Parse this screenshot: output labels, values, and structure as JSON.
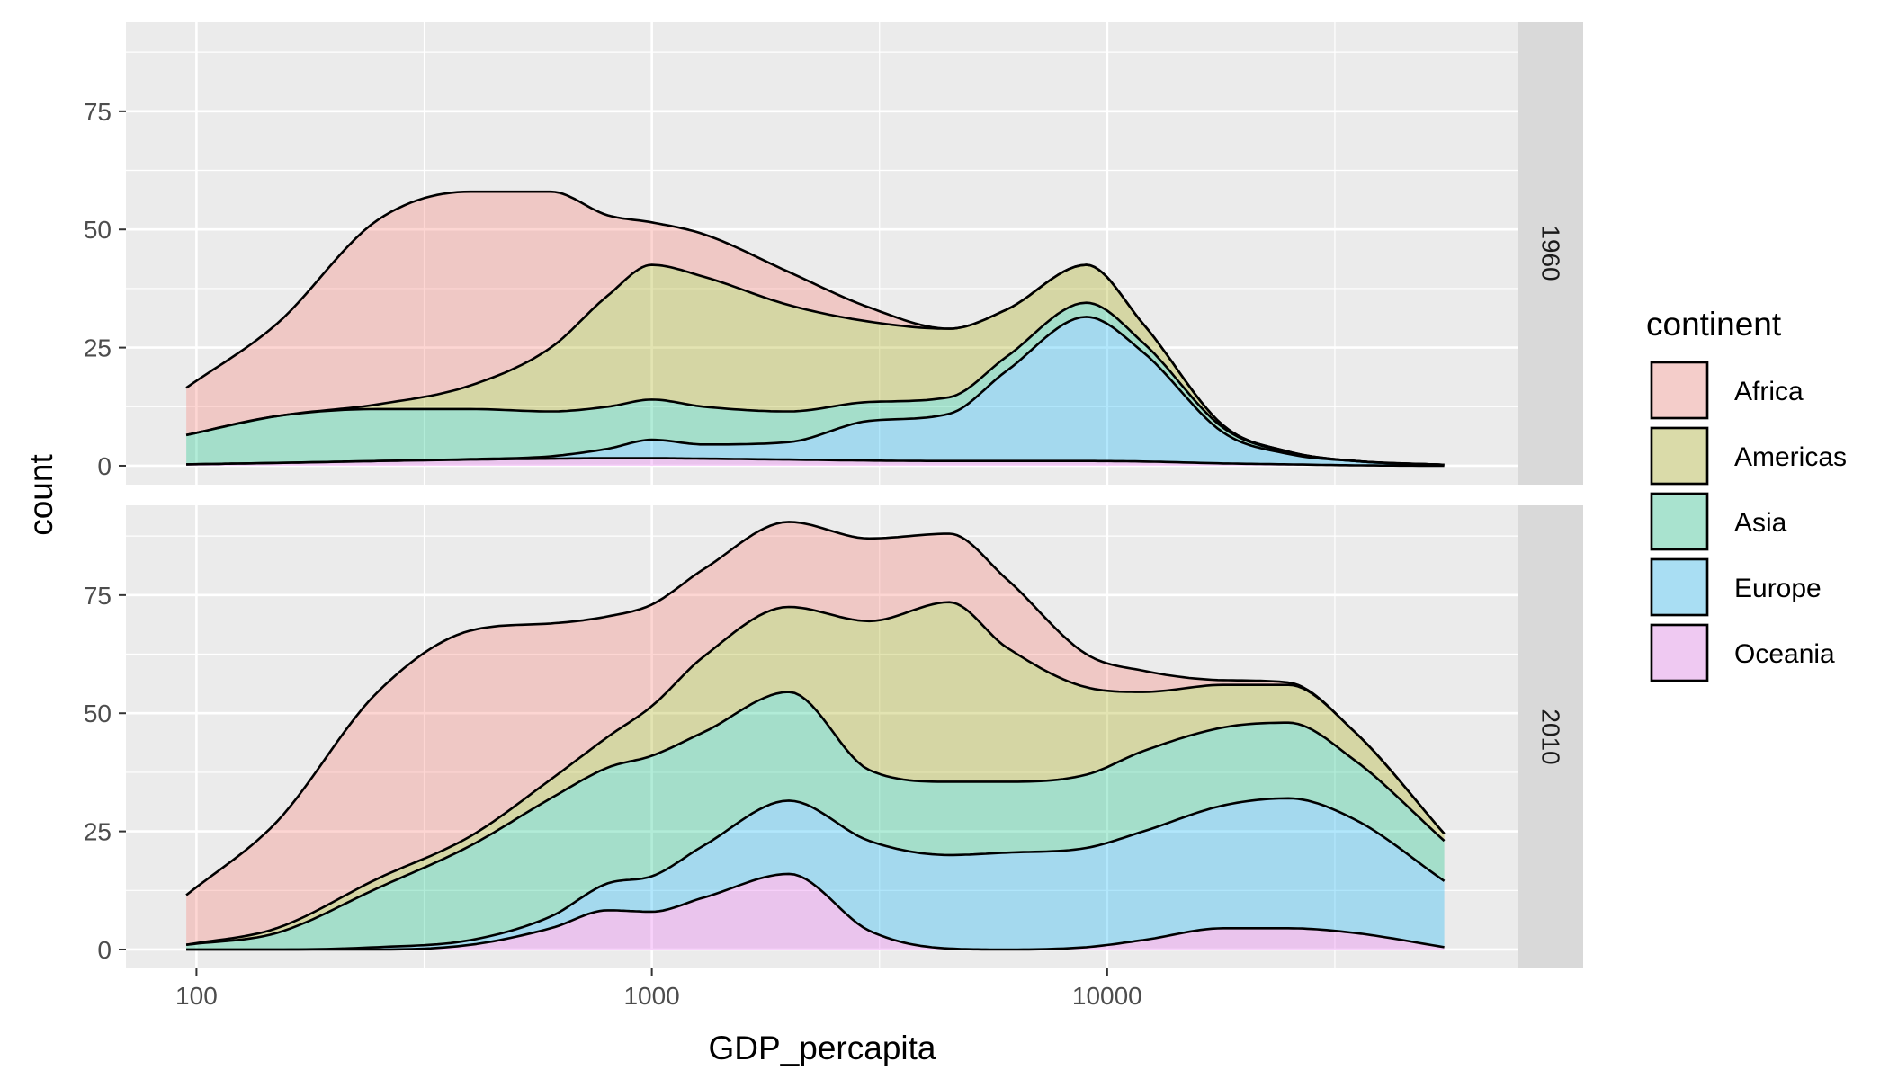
{
  "chart_data": {
    "type": "area",
    "subtype": "stacked density",
    "title": "",
    "xlabel": "GDP_percapita",
    "ylabel": "count",
    "x_scale": "log10",
    "x_ticks": [
      100,
      1000,
      10000
    ],
    "x_tick_labels": [
      "100",
      "1000",
      "10000"
    ],
    "xlim": [
      70,
      80000
    ],
    "y_ticks": [
      0,
      25,
      50,
      75
    ],
    "y_tick_labels": [
      "0",
      "25",
      "50",
      "75"
    ],
    "ylim": [
      -4,
      94
    ],
    "grid": true,
    "legend": {
      "title": "continent",
      "position": "right",
      "entries": [
        "Africa",
        "Americas",
        "Asia",
        "Europe",
        "Oceania"
      ]
    },
    "colors": {
      "Africa": "#F8766D",
      "Americas": "#A3A500",
      "Asia": "#00BF7D",
      "Europe": "#00B0F6",
      "Oceania": "#E76BF3"
    },
    "fill_alpha": 0.3,
    "x": [
      95,
      150,
      250,
      400,
      600,
      800,
      1000,
      1300,
      2000,
      3000,
      4500,
      6000,
      9000,
      12000,
      18000,
      25000,
      35000,
      55000
    ],
    "facets": [
      {
        "strip": "1960",
        "series": [
          {
            "name": "Oceania",
            "values": [
              0.3,
              0.6,
              1.0,
              1.3,
              1.5,
              1.6,
              1.6,
              1.5,
              1.3,
              1.1,
              1.0,
              1.0,
              1.0,
              0.9,
              0.5,
              0.3,
              0.1,
              0.0
            ]
          },
          {
            "name": "Europe",
            "values": [
              0.3,
              0.6,
              1.0,
              1.4,
              2.0,
              3.6,
              5.5,
              4.5,
              5.0,
              9.5,
              11.0,
              20.0,
              31.5,
              24.0,
              7.0,
              2.5,
              1.0,
              0.2
            ]
          },
          {
            "name": "Asia",
            "values": [
              6.5,
              10.5,
              12.0,
              12.0,
              11.5,
              12.5,
              14.0,
              12.5,
              11.5,
              13.5,
              14.5,
              23.0,
              34.5,
              26.0,
              8.0,
              2.8,
              1.0,
              0.2
            ]
          },
          {
            "name": "Americas",
            "values": [
              6.5,
              10.5,
              13.0,
              17.0,
              25.0,
              36.0,
              42.5,
              40.0,
              34.0,
              30.5,
              29.0,
              33.0,
              42.5,
              30.0,
              8.5,
              3.0,
              1.0,
              0.2
            ]
          },
          {
            "name": "Africa",
            "values": [
              16.5,
              30.0,
              52.0,
              58.0,
              58.0,
              53.0,
              51.5,
              49.0,
              41.0,
              33.5,
              29.0,
              33.0,
              42.5,
              30.0,
              8.5,
              3.0,
              1.0,
              0.2
            ]
          }
        ]
      },
      {
        "strip": "2010",
        "series": [
          {
            "name": "Oceania",
            "values": [
              0.0,
              0.0,
              0.0,
              1.0,
              4.5,
              8.3,
              8.0,
              11.0,
              16.0,
              4.0,
              0.2,
              0.0,
              0.5,
              2.0,
              4.5,
              4.5,
              3.5,
              0.5
            ]
          },
          {
            "name": "Europe",
            "values": [
              0.0,
              0.0,
              0.5,
              2.0,
              7.0,
              14.0,
              15.5,
              22.0,
              31.5,
              23.0,
              20.0,
              20.5,
              21.5,
              25.0,
              30.5,
              32.0,
              27.5,
              14.5
            ]
          },
          {
            "name": "Asia",
            "values": [
              1.0,
              3.5,
              13.0,
              22.0,
              32.0,
              38.5,
              41.0,
              46.0,
              54.5,
              38.0,
              35.5,
              35.5,
              37.0,
              42.0,
              47.0,
              48.0,
              40.0,
              23.0
            ]
          },
          {
            "name": "Americas",
            "values": [
              1.0,
              4.5,
              15.0,
              24.0,
              36.0,
              45.0,
              51.5,
              62.0,
              72.5,
              69.5,
              73.5,
              64.0,
              55.5,
              54.5,
              56.0,
              56.0,
              46.0,
              24.5
            ]
          },
          {
            "name": "Africa",
            "values": [
              11.5,
              27.0,
              54.5,
              67.5,
              69.0,
              70.5,
              73.0,
              80.5,
              90.5,
              87.0,
              88.0,
              78.5,
              62.5,
              59.0,
              57.0,
              56.5,
              46.0,
              24.5
            ]
          }
        ]
      }
    ]
  }
}
